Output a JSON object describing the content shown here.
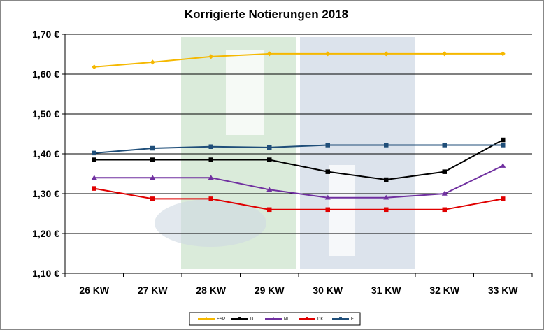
{
  "chart_data": {
    "type": "line",
    "title": "Korrigierte Notierungen 2018",
    "categories": [
      "26 KW",
      "27 KW",
      "28 KW",
      "29 KW",
      "30 KW",
      "31 KW",
      "32 KW",
      "33 KW"
    ],
    "ylim": [
      1.1,
      1.7
    ],
    "yticks": [
      1.1,
      1.2,
      1.3,
      1.4,
      1.5,
      1.6,
      1.7
    ],
    "ytick_labels": [
      "1,10 €",
      "1,20 €",
      "1,30 €",
      "1,40 €",
      "1,50 €",
      "1,60 €",
      "1,70 €"
    ],
    "grid": true,
    "legend_position": "bottom",
    "series": [
      {
        "name": "ESP",
        "color": "#f5b800",
        "marker": "diamond",
        "values": [
          1.618,
          1.63,
          1.644,
          1.651,
          1.651,
          1.651,
          1.651,
          1.651
        ]
      },
      {
        "name": "D",
        "color": "#000000",
        "marker": "square",
        "values": [
          1.385,
          1.385,
          1.385,
          1.385,
          1.355,
          1.335,
          1.355,
          1.435
        ]
      },
      {
        "name": "NL",
        "color": "#7030a0",
        "marker": "triangle",
        "values": [
          1.34,
          1.34,
          1.34,
          1.31,
          1.29,
          1.29,
          1.3,
          1.37
        ]
      },
      {
        "name": "DK",
        "color": "#e00000",
        "marker": "square",
        "values": [
          1.313,
          1.287,
          1.287,
          1.26,
          1.26,
          1.26,
          1.26,
          1.287
        ]
      },
      {
        "name": "F",
        "color": "#1f4e79",
        "marker": "square",
        "values": [
          1.402,
          1.414,
          1.418,
          1.416,
          1.422,
          1.422,
          1.422,
          1.422
        ]
      }
    ]
  }
}
